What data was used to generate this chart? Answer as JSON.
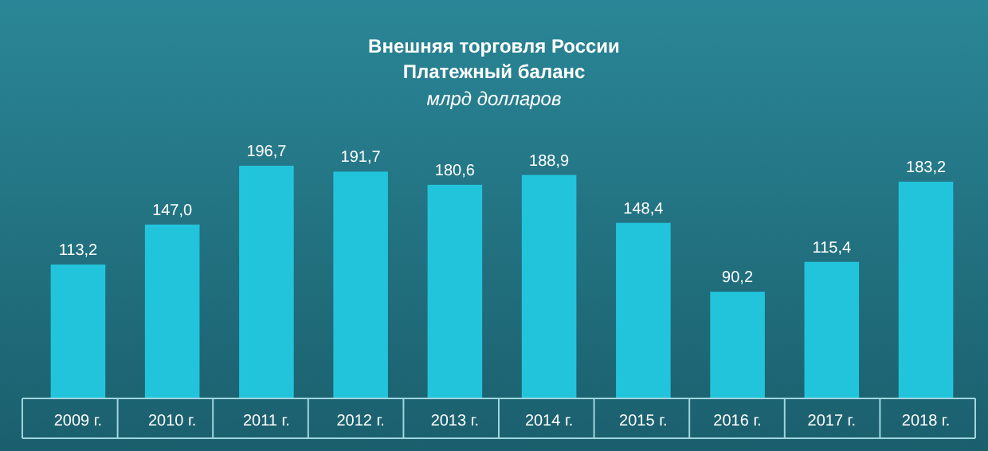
{
  "chart_data": {
    "type": "bar",
    "title": "Внешняя торговля России",
    "subtitle": "Платежный баланс",
    "ylabel": "млрд долларов",
    "categories": [
      "2009 г.",
      "2010 г.",
      "2011 г.",
      "2012 г.",
      "2013 г.",
      "2014 г.",
      "2015 г.",
      "2016 г.",
      "2017 г.",
      "2018 г."
    ],
    "values": [
      113.2,
      147.0,
      196.7,
      191.7,
      180.6,
      188.9,
      148.4,
      90.2,
      115.4,
      183.2
    ],
    "value_labels": [
      "113,2",
      "147,0",
      "196,7",
      "191,7",
      "180,6",
      "188,9",
      "148,4",
      "90,2",
      "115,4",
      "183,2"
    ],
    "color": "#22c4dc"
  }
}
